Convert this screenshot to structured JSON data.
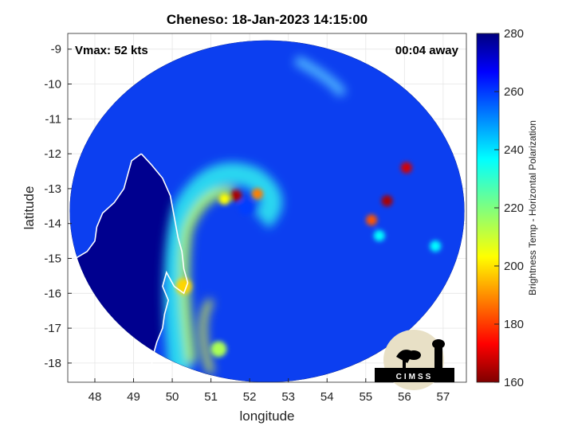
{
  "chart_data": {
    "type": "heatmap",
    "title": "Cheneso: 18-Jan-2023 14:15:00",
    "xlabel": "longitude",
    "ylabel": "latitude",
    "xlim": [
      47.3,
      57.6
    ],
    "ylim": [
      -18.55,
      -8.55
    ],
    "xticks": [
      48,
      49,
      50,
      51,
      52,
      53,
      54,
      55,
      56,
      57
    ],
    "xtick_labels": [
      "48",
      "49",
      "50",
      "51",
      "52",
      "53",
      "54",
      "55",
      "56",
      "57"
    ],
    "yticks": [
      -9,
      -10,
      -11,
      -12,
      -13,
      -14,
      -15,
      -16,
      -17,
      -18
    ],
    "ytick_labels": [
      "-9",
      "-10",
      "-11",
      "-12",
      "-13",
      "-14",
      "-15",
      "-16",
      "-17",
      "-18"
    ],
    "grid": true,
    "colormap": "jet",
    "swath": {
      "center": [
        52.45,
        -13.65
      ],
      "radius_lon": 5.1,
      "radius_lat": 4.9
    },
    "colorbar": {
      "label": "Brightness Temp - Horizontal Polarization",
      "range": [
        160,
        280
      ],
      "ticks": [
        160,
        180,
        200,
        220,
        240,
        260,
        280
      ],
      "tick_labels": [
        "160",
        "180",
        "200",
        "220",
        "240",
        "260",
        "280"
      ]
    },
    "annotations": {
      "vmax": "Vmax: 52 kts",
      "time_offset": "00:04 away"
    },
    "features": [
      {
        "name": "Eyewall convection",
        "lon": 51.65,
        "lat": -13.2,
        "value": 165
      },
      {
        "name": "Eyewall convection",
        "lon": 52.2,
        "lat": -13.15,
        "value": 190
      },
      {
        "name": "Eyewall convection",
        "lon": 51.35,
        "lat": -13.3,
        "value": 205
      },
      {
        "name": "Eye",
        "lon": 51.9,
        "lat": -13.55,
        "value": 258
      },
      {
        "name": "Convective cell",
        "lon": 55.55,
        "lat": -13.35,
        "value": 165
      },
      {
        "name": "Convective cell",
        "lon": 56.05,
        "lat": -12.4,
        "value": 170
      },
      {
        "name": "Convective cell",
        "lon": 55.15,
        "lat": -13.9,
        "value": 185
      },
      {
        "name": "Convective cell",
        "lon": 55.35,
        "lat": -14.35,
        "value": 235
      },
      {
        "name": "Convective cell",
        "lon": 56.8,
        "lat": -14.65,
        "value": 235
      },
      {
        "name": "Rain band",
        "lon": 50.3,
        "lat": -15.8,
        "value": 200
      },
      {
        "name": "Rain band",
        "lon": 51.2,
        "lat": -17.6,
        "value": 215
      },
      {
        "name": "Land (Madagascar)",
        "lon": 48.3,
        "lat": -16.3,
        "value": 278
      }
    ],
    "coastline": [
      [
        49.2,
        -12.0
      ],
      [
        49.45,
        -12.3
      ],
      [
        49.75,
        -12.7
      ],
      [
        49.95,
        -13.2
      ],
      [
        50.05,
        -13.8
      ],
      [
        50.15,
        -14.4
      ],
      [
        50.25,
        -14.8
      ],
      [
        50.3,
        -15.3
      ],
      [
        50.4,
        -15.7
      ],
      [
        50.3,
        -16.0
      ],
      [
        50.05,
        -15.8
      ],
      [
        49.85,
        -15.4
      ],
      [
        49.75,
        -15.8
      ],
      [
        49.9,
        -16.2
      ],
      [
        49.8,
        -16.6
      ],
      [
        49.75,
        -17.0
      ],
      [
        49.6,
        -17.4
      ],
      [
        49.5,
        -17.8
      ],
      [
        49.45,
        -18.2
      ],
      [
        49.38,
        -18.6
      ]
    ],
    "coastline_north": [
      [
        49.2,
        -12.0
      ],
      [
        48.95,
        -12.2
      ],
      [
        48.85,
        -12.6
      ],
      [
        48.75,
        -13.0
      ],
      [
        48.5,
        -13.4
      ],
      [
        48.2,
        -13.7
      ],
      [
        48.05,
        -14.1
      ],
      [
        48.0,
        -14.5
      ],
      [
        47.8,
        -14.8
      ],
      [
        47.5,
        -15.0
      ],
      [
        47.3,
        -15.2
      ]
    ]
  },
  "logo": {
    "text": "CIMSS",
    "bg_color": "#e8e0c6",
    "fg_color": "#000000"
  },
  "colors": {
    "land": "#00008f",
    "ocean_base": "#0c3ff0"
  }
}
